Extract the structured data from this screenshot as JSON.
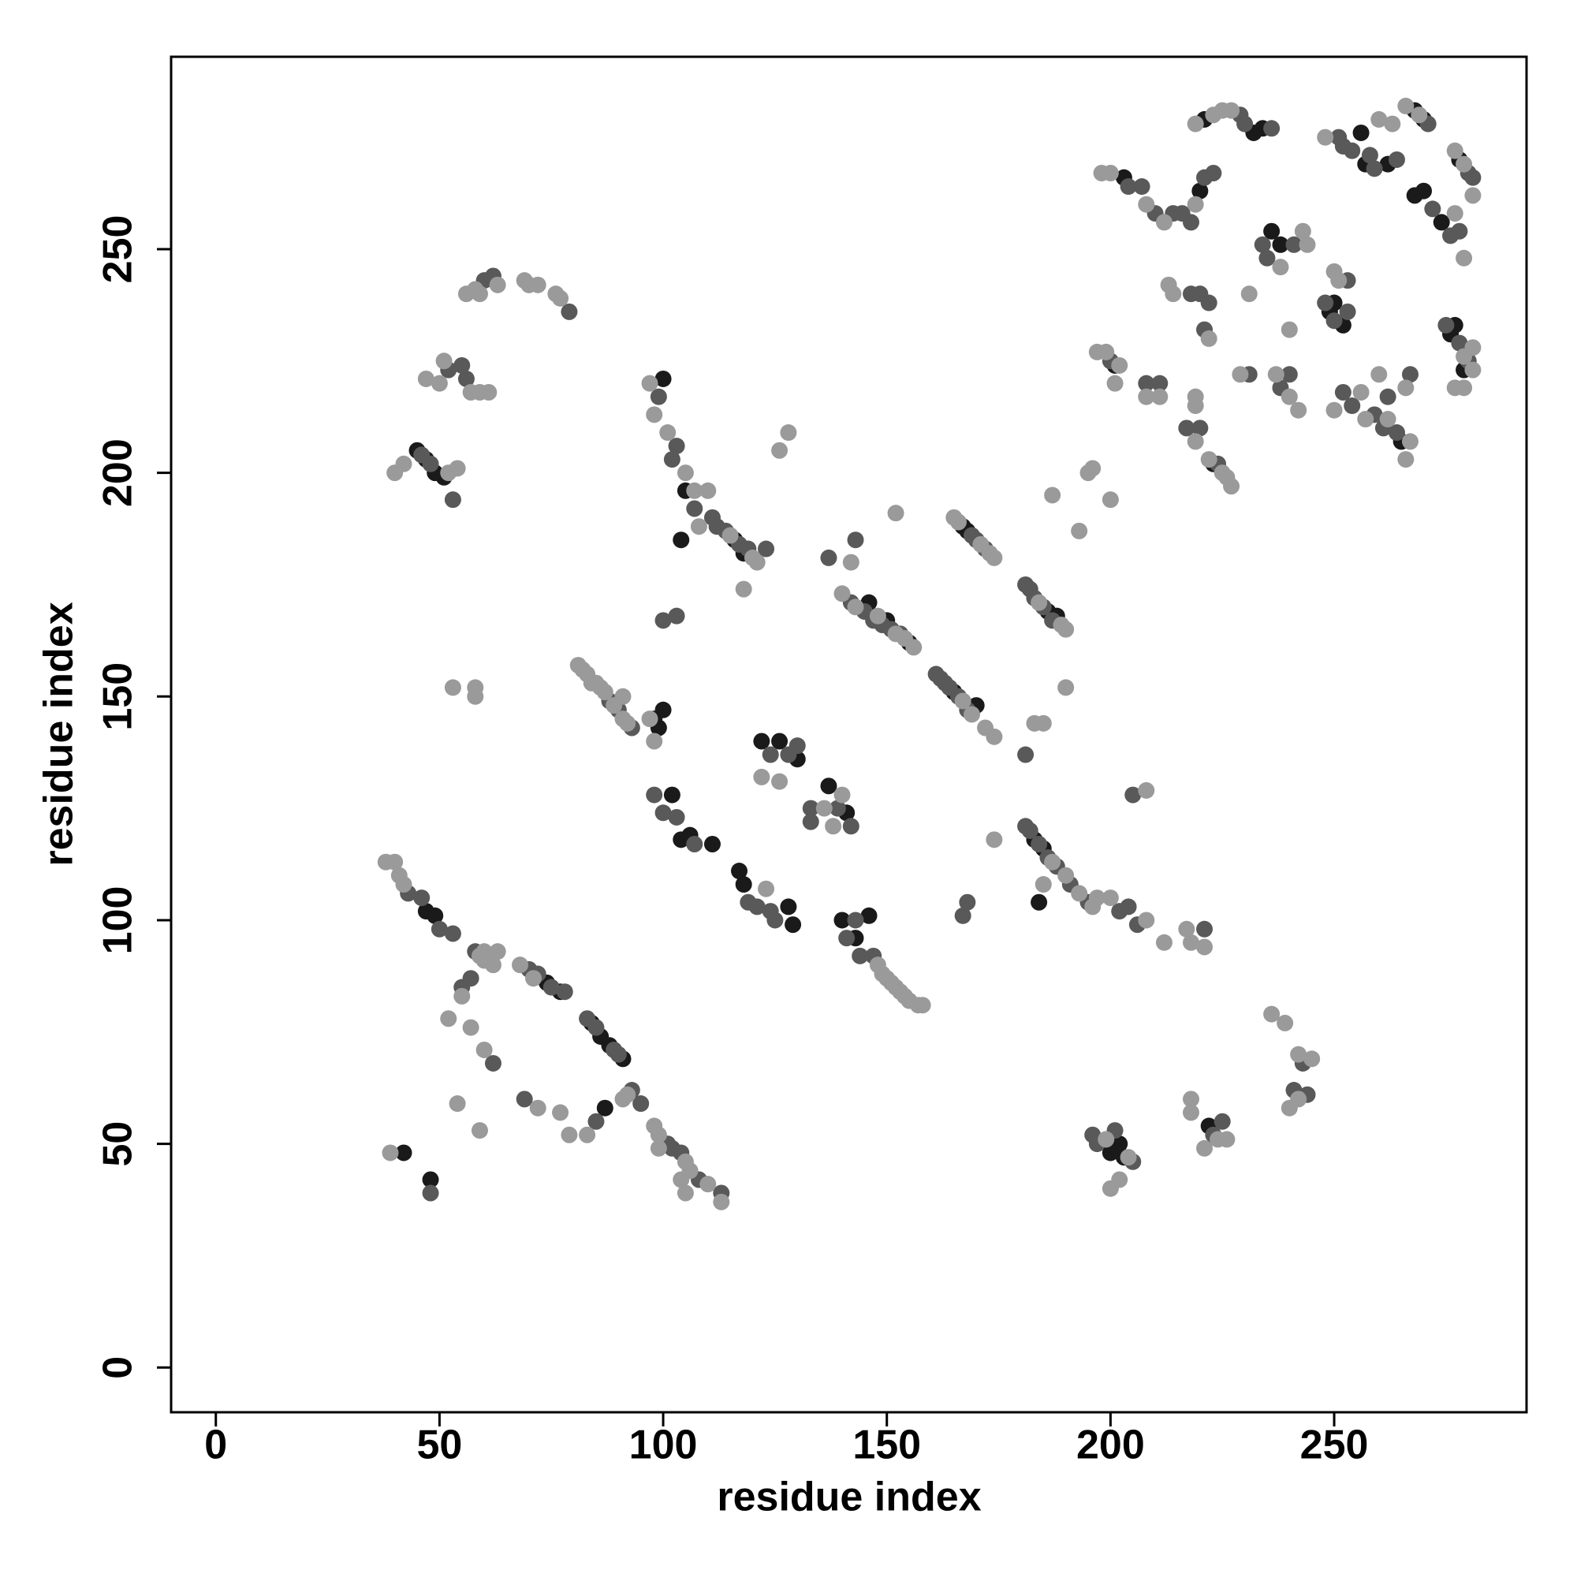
{
  "chart_data": {
    "type": "scatter",
    "x_label": "residue index",
    "y_label": "residue index",
    "xlim": [
      -10,
      293
    ],
    "ylim": [
      -10,
      293
    ],
    "xticks": [
      0,
      50,
      100,
      150,
      200,
      250
    ],
    "yticks": [
      0,
      50,
      100,
      150,
      200,
      250
    ],
    "grid": false,
    "series": [
      {
        "color": "#1a1a1a",
        "x": [
          47,
          49,
          74,
          77,
          84,
          86,
          88,
          91,
          87,
          48,
          42,
          98,
          100,
          99,
          102,
          104,
          106,
          111,
          117,
          118,
          128,
          129,
          140,
          143,
          146,
          122,
          126,
          130,
          137,
          141,
          104,
          105,
          118,
          116,
          146,
          150,
          155,
          170,
          165,
          168,
          167,
          188,
          186,
          183,
          185,
          184,
          200,
          203,
          202,
          222,
          45,
          47,
          49,
          51,
          221,
          234,
          232,
          201,
          223,
          236,
          238,
          249,
          252,
          250,
          265,
          268,
          270,
          268,
          270,
          274,
          277,
          276,
          278,
          279,
          257,
          262,
          256,
          203,
          220,
          100
        ],
        "values": [
          102,
          101,
          86,
          84,
          77,
          74,
          72,
          69,
          58,
          42,
          48,
          145,
          147,
          143,
          128,
          118,
          119,
          117,
          111,
          108,
          103,
          99,
          100,
          96,
          101,
          140,
          140,
          136,
          130,
          124,
          185,
          196,
          182,
          185,
          171,
          167,
          162,
          148,
          151,
          187,
          188,
          168,
          169,
          118,
          116,
          104,
          48,
          47,
          50,
          54,
          205,
          203,
          200,
          199,
          279,
          277,
          276,
          224,
          202,
          254,
          251,
          236,
          233,
          238,
          207,
          281,
          279,
          262,
          263,
          256,
          233,
          231,
          270,
          223,
          269,
          269,
          276,
          266,
          263,
          221
        ]
      },
      {
        "color": "#595959",
        "x": [
          43,
          46,
          50,
          53,
          58,
          70,
          72,
          75,
          78,
          83,
          85,
          89,
          90,
          93,
          95,
          101,
          102,
          104,
          108,
          113,
          55,
          57,
          62,
          69,
          48,
          85,
          88,
          90,
          93,
          98,
          100,
          103,
          107,
          119,
          121,
          124,
          125,
          141,
          143,
          144,
          147,
          124,
          128,
          130,
          133,
          133,
          139,
          142,
          99,
          103,
          102,
          107,
          111,
          112,
          114,
          117,
          119,
          123,
          100,
          103,
          142,
          145,
          147,
          149,
          151,
          153,
          161,
          162,
          163,
          164,
          166,
          168,
          169,
          170,
          172,
          181,
          182,
          183,
          185,
          187,
          181,
          182,
          184,
          186,
          188,
          191,
          195,
          168,
          167,
          202,
          206,
          204,
          221,
          205,
          196,
          197,
          201,
          205,
          223,
          225,
          241,
          243,
          244,
          46,
          48,
          53,
          52,
          55,
          56,
          60,
          62,
          79,
          200,
          208,
          211,
          217,
          220,
          224,
          204,
          207,
          210,
          214,
          216,
          218,
          221,
          223,
          229,
          230,
          236,
          218,
          220,
          222,
          221,
          231,
          238,
          240,
          234,
          235,
          241,
          248,
          250,
          253,
          253,
          252,
          254,
          259,
          261,
          264,
          267,
          262,
          251,
          252,
          254,
          258,
          259,
          264,
          271,
          272,
          276,
          278,
          280,
          281,
          275,
          278,
          280,
          181,
          137,
          143
        ],
        "values": [
          106,
          105,
          98,
          97,
          93,
          89,
          88,
          85,
          84,
          78,
          76,
          71,
          70,
          62,
          59,
          50,
          49,
          48,
          42,
          39,
          85,
          87,
          68,
          60,
          39,
          55,
          149,
          147,
          143,
          128,
          124,
          123,
          117,
          104,
          103,
          102,
          100,
          96,
          100,
          92,
          92,
          137,
          137,
          139,
          125,
          122,
          125,
          121,
          217,
          206,
          203,
          192,
          190,
          188,
          187,
          184,
          183,
          183,
          167,
          168,
          171,
          169,
          167,
          166,
          165,
          164,
          155,
          154,
          153,
          152,
          150,
          147,
          186,
          185,
          183,
          175,
          174,
          172,
          170,
          167,
          121,
          120,
          117,
          114,
          112,
          108,
          104,
          104,
          101,
          102,
          99,
          103,
          98,
          128,
          52,
          50,
          53,
          46,
          52,
          55,
          62,
          68,
          61,
          204,
          202,
          194,
          223,
          224,
          221,
          243,
          244,
          236,
          225,
          220,
          220,
          210,
          210,
          202,
          264,
          264,
          258,
          258,
          258,
          256,
          266,
          267,
          280,
          278,
          277,
          240,
          240,
          238,
          232,
          222,
          219,
          222,
          251,
          248,
          251,
          238,
          234,
          236,
          243,
          218,
          215,
          213,
          210,
          209,
          222,
          217,
          275,
          273,
          272,
          271,
          268,
          270,
          278,
          259,
          253,
          254,
          267,
          266,
          233,
          229,
          225,
          137,
          181,
          185
        ]
      },
      {
        "color": "#9a9a9a",
        "x": [
          38,
          40,
          41,
          42,
          59,
          60,
          62,
          63,
          68,
          71,
          91,
          92,
          98,
          99,
          105,
          106,
          110,
          113,
          54,
          59,
          72,
          77,
          79,
          83,
          55,
          60,
          60,
          57,
          52,
          39,
          99,
          105,
          104,
          81,
          82,
          83,
          84,
          85,
          86,
          87,
          89,
          91,
          92,
          91,
          97,
          98,
          123,
          148,
          149,
          150,
          151,
          152,
          153,
          154,
          155,
          157,
          158,
          122,
          126,
          138,
          136,
          140,
          97,
          98,
          101,
          105,
          107,
          108,
          110,
          115,
          120,
          121,
          118,
          128,
          126,
          140,
          143,
          148,
          152,
          154,
          156,
          142,
          152,
          167,
          169,
          172,
          174,
          165,
          166,
          171,
          173,
          174,
          184,
          189,
          190,
          187,
          193,
          195,
          196,
          200,
          190,
          183,
          185,
          187,
          190,
          193,
          196,
          185,
          174,
          197,
          200,
          208,
          212,
          217,
          218,
          221,
          208,
          199,
          204,
          200,
          202,
          218,
          218,
          221,
          224,
          226,
          236,
          239,
          242,
          242,
          240,
          245,
          40,
          42,
          52,
          54,
          50,
          51,
          57,
          59,
          61,
          47,
          56,
          58,
          59,
          63,
          69,
          70,
          72,
          76,
          77,
          53,
          58,
          58,
          197,
          199,
          202,
          201,
          208,
          211,
          219,
          222,
          225,
          226,
          227,
          198,
          200,
          208,
          212,
          219,
          219,
          223,
          225,
          227,
          213,
          214,
          231,
          229,
          237,
          240,
          242,
          243,
          244,
          238,
          240,
          251,
          250,
          250,
          256,
          257,
          260,
          262,
          266,
          266,
          248,
          260,
          263,
          266,
          269,
          277,
          279,
          281,
          277,
          279,
          279,
          281,
          277,
          279,
          281,
          219,
          219,
          222,
          267
        ],
        "values": [
          113,
          113,
          110,
          108,
          92,
          91,
          90,
          93,
          90,
          87,
          60,
          61,
          54,
          52,
          46,
          44,
          41,
          37,
          59,
          53,
          58,
          57,
          52,
          52,
          83,
          93,
          71,
          76,
          78,
          48,
          49,
          39,
          42,
          157,
          156,
          155,
          153,
          153,
          152,
          151,
          148,
          145,
          144,
          150,
          145,
          140,
          107,
          90,
          88,
          87,
          86,
          85,
          84,
          83,
          82,
          81,
          81,
          132,
          131,
          121,
          125,
          128,
          220,
          213,
          209,
          200,
          196,
          188,
          196,
          186,
          181,
          180,
          174,
          209,
          205,
          173,
          170,
          168,
          164,
          163,
          161,
          180,
          191,
          149,
          146,
          143,
          141,
          190,
          189,
          184,
          182,
          181,
          171,
          166,
          165,
          195,
          187,
          200,
          201,
          194,
          152,
          144,
          144,
          113,
          110,
          106,
          103,
          108,
          118,
          105,
          105,
          100,
          95,
          98,
          95,
          94,
          129,
          51,
          47,
          40,
          42,
          60,
          57,
          49,
          51,
          51,
          79,
          77,
          70,
          60,
          58,
          69,
          200,
          202,
          200,
          201,
          220,
          225,
          218,
          218,
          218,
          221,
          240,
          241,
          240,
          242,
          243,
          242,
          242,
          240,
          239,
          152,
          152,
          150,
          227,
          227,
          224,
          220,
          217,
          217,
          207,
          203,
          200,
          199,
          197,
          267,
          267,
          260,
          256,
          260,
          278,
          280,
          281,
          281,
          242,
          240,
          240,
          222,
          222,
          217,
          214,
          254,
          251,
          246,
          232,
          243,
          245,
          214,
          218,
          212,
          222,
          212,
          203,
          219,
          275,
          279,
          278,
          282,
          280,
          258,
          248,
          262,
          272,
          269,
          226,
          228,
          219,
          219,
          223,
          217,
          215,
          230,
          207
        ]
      }
    ]
  }
}
